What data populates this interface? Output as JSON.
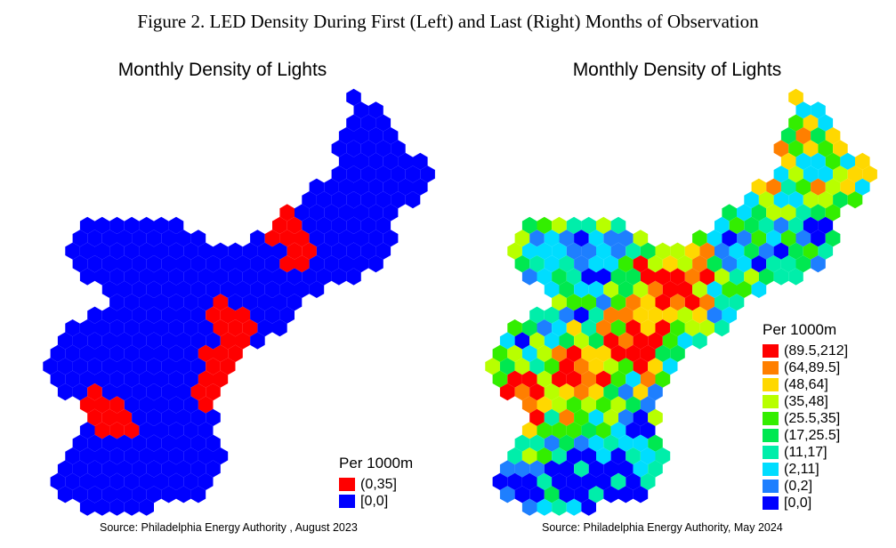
{
  "figure_title": "Figure 2. LED Density During First (Left) and Last (Right) Months of Observation",
  "chart_data": [
    {
      "type": "map",
      "title": "Monthly Density of Lights",
      "legend_title": "Per 1000m",
      "legend": [
        {
          "label": "(0,35]",
          "color": "#ff0000"
        },
        {
          "label": "[0,0]",
          "color": "#0000ff"
        }
      ],
      "source": "Source: Philadelphia Energy Authority , August 2023"
    },
    {
      "type": "map",
      "title": "Monthly Density of Lights",
      "legend_title": "Per 1000m",
      "legend": [
        {
          "label": "(89.5,212]",
          "color": "#ff0000"
        },
        {
          "label": "(64,89.5]",
          "color": "#ff7f00"
        },
        {
          "label": "(48,64]",
          "color": "#ffd800"
        },
        {
          "label": "(35,48]",
          "color": "#b8ff00"
        },
        {
          "label": "(25.5,35]",
          "color": "#33ee00"
        },
        {
          "label": "(17,25.5]",
          "color": "#00e850"
        },
        {
          "label": "(11,17]",
          "color": "#00eeaa"
        },
        {
          "label": "(2,11]",
          "color": "#00ddff"
        },
        {
          "label": "(0,2]",
          "color": "#1e7fff"
        },
        {
          "label": "[0,0]",
          "color": "#0000ff"
        }
      ],
      "source": "Source: Philadelphia Energy Authority, May 2024"
    }
  ]
}
